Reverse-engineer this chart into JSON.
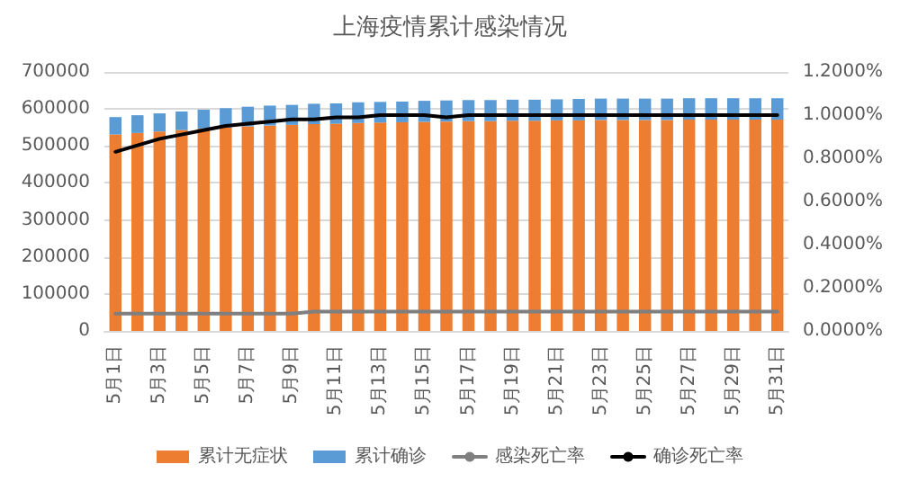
{
  "chart_data": {
    "type": "bar",
    "title": "上海疫情累计感染情况",
    "stacked": true,
    "categories": [
      "5月1日",
      null,
      "5月3日",
      null,
      "5月5日",
      null,
      "5月7日",
      null,
      "5月9日",
      null,
      "5月11日",
      null,
      "5月13日",
      null,
      "5月15日",
      null,
      "5月17日",
      null,
      "5月19日",
      null,
      "5月21日",
      null,
      "5月23日",
      null,
      "5月25日",
      null,
      "5月27日",
      null,
      "5月29日",
      null,
      "5月31日"
    ],
    "series": [
      {
        "name": "累计无症状",
        "color": "#ed7d31",
        "values": [
          531000,
          535000,
          539000,
          543000,
          547000,
          550000,
          553000,
          555000,
          557000,
          559000,
          560000,
          562000,
          563000,
          564000,
          565000,
          566000,
          567000,
          567000,
          568000,
          568000,
          569000,
          569000,
          570000,
          570000,
          570000,
          570000,
          571000,
          571000,
          571000,
          571000,
          571000
        ]
      },
      {
        "name": "累计确诊",
        "color": "#5b9bd5",
        "values": [
          47000,
          48000,
          49000,
          50000,
          51000,
          52000,
          53000,
          54000,
          54000,
          55000,
          55000,
          56000,
          56000,
          56000,
          57000,
          57000,
          57000,
          57000,
          57000,
          57000,
          57000,
          58000,
          58000,
          58000,
          58000,
          58000,
          58000,
          58000,
          58000,
          58000,
          58000
        ]
      },
      {
        "name": "感染死亡率",
        "type": "line",
        "axis": "y2",
        "color": "#7f7f7f",
        "values": [
          0.08,
          0.08,
          0.08,
          0.08,
          0.08,
          0.08,
          0.08,
          0.08,
          0.08,
          0.09,
          0.09,
          0.09,
          0.09,
          0.09,
          0.09,
          0.09,
          0.09,
          0.09,
          0.09,
          0.09,
          0.09,
          0.09,
          0.09,
          0.09,
          0.09,
          0.09,
          0.09,
          0.09,
          0.09,
          0.09,
          0.09
        ]
      },
      {
        "name": "确诊死亡率",
        "type": "line",
        "axis": "y2",
        "color": "#000000",
        "values": [
          0.83,
          0.86,
          0.89,
          0.91,
          0.93,
          0.95,
          0.96,
          0.97,
          0.98,
          0.98,
          0.99,
          0.99,
          1.0,
          1.0,
          1.0,
          0.99,
          1.0,
          1.0,
          1.0,
          1.0,
          1.0,
          1.0,
          1.0,
          1.0,
          1.0,
          1.0,
          1.0,
          1.0,
          1.0,
          1.0,
          1.0
        ]
      }
    ],
    "ylim": [
      0,
      700000
    ],
    "yticks": [
      0,
      100000,
      200000,
      300000,
      400000,
      500000,
      600000,
      700000
    ],
    "y2lim": [
      0,
      1.2
    ],
    "y2ticks": [
      {
        "value": 0,
        "label": "0.0000%"
      },
      {
        "value": 0.2,
        "label": "0.2000%"
      },
      {
        "value": 0.4,
        "label": "0.4000%"
      },
      {
        "value": 0.6,
        "label": "0.6000%"
      },
      {
        "value": 0.8,
        "label": "0.8000%"
      },
      {
        "value": 1.0,
        "label": "1.0000%"
      },
      {
        "value": 1.2,
        "label": "1.2000%"
      }
    ],
    "grid": "y",
    "legend": "bottom",
    "marker": "none",
    "line_style": "solid"
  }
}
